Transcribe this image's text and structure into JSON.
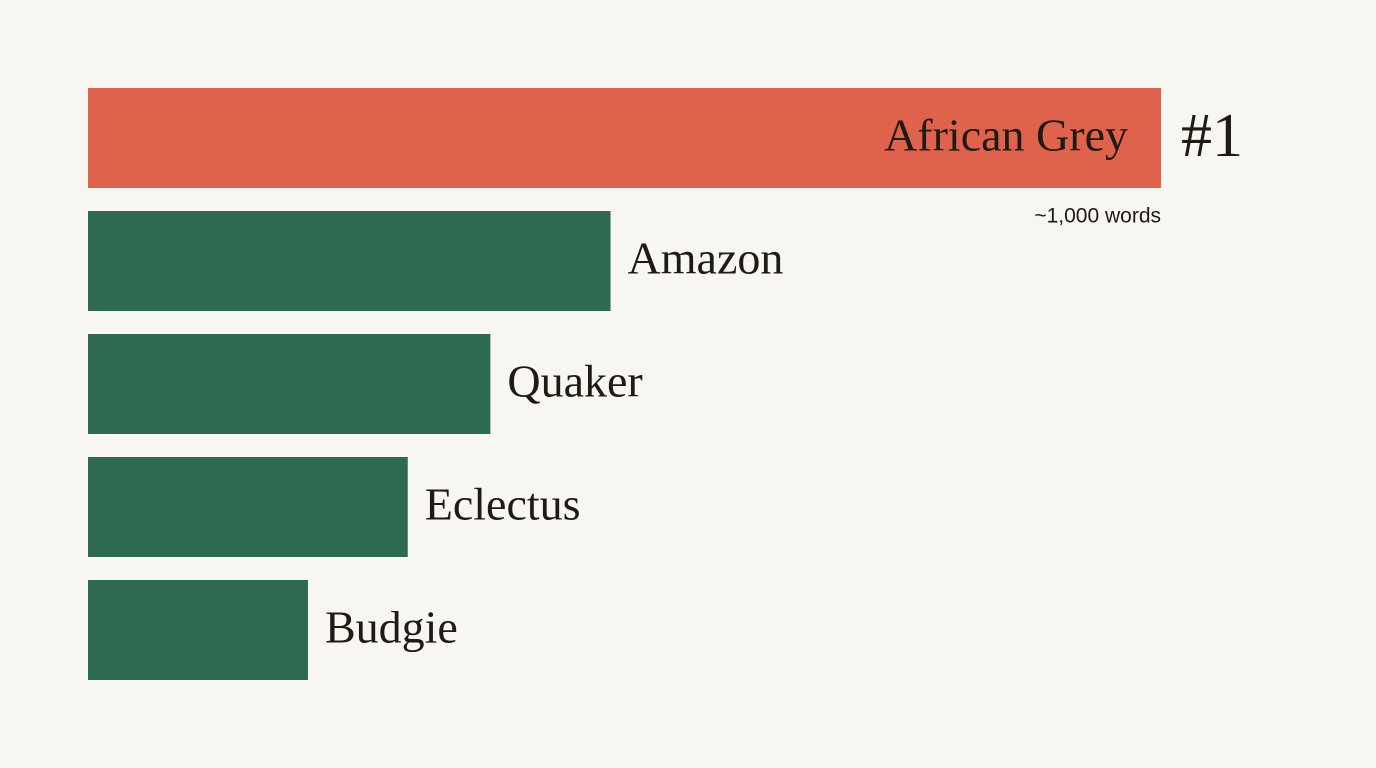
{
  "chart_data": {
    "type": "hbar",
    "categories": [
      "African Grey",
      "Amazon",
      "Quaker",
      "Eclectus",
      "Budgie"
    ],
    "values": [
      1000,
      487,
      375,
      298,
      205
    ],
    "value_labels": [
      "~1,000 words",
      null,
      null,
      null,
      null
    ],
    "colors": [
      "#df634c",
      "#2e6a50",
      "#2e6a50",
      "#2e6a50",
      "#2e6a50"
    ],
    "annotation": "#1",
    "xlim": [
      0,
      1000
    ]
  }
}
